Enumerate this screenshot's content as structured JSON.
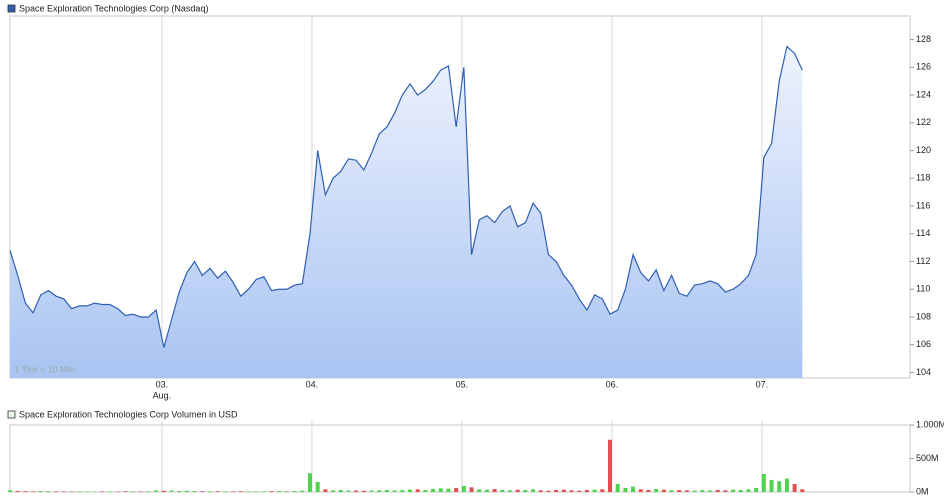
{
  "chart_data": [
    {
      "type": "line",
      "title": "Space Exploration Technologies Corp (Nasdaq)",
      "note": "1 Tick = 10 Min.",
      "x": [
        0,
        2,
        4,
        6,
        8,
        10,
        12,
        14,
        16,
        18,
        20,
        22,
        24,
        26,
        28,
        30,
        32,
        34,
        36,
        38,
        40,
        42,
        44,
        46,
        48,
        50,
        52,
        54,
        56,
        58,
        60,
        62,
        64,
        66,
        68,
        70,
        72,
        74,
        76,
        78,
        80,
        82,
        84,
        86,
        88,
        90,
        92,
        94,
        96,
        98,
        100,
        102,
        104,
        106,
        108,
        110,
        112,
        114,
        116,
        118,
        120,
        122,
        124,
        126,
        128,
        130,
        132,
        134,
        136,
        138,
        140,
        142,
        144,
        146,
        148,
        150,
        152,
        154,
        156,
        158,
        160,
        162,
        164,
        166,
        168,
        170,
        172,
        174,
        176,
        178,
        180,
        182,
        184,
        186,
        188,
        190,
        192,
        194,
        196,
        198,
        200,
        202,
        204,
        206
      ],
      "series": [
        {
          "name": "Space Exploration Technologies Corp (Nasdaq)",
          "color": "#2f5fb3",
          "values": [
            112.8,
            111.0,
            109.0,
            108.3,
            109.6,
            109.9,
            109.5,
            109.3,
            108.6,
            108.8,
            108.8,
            109.0,
            108.9,
            108.9,
            108.6,
            108.1,
            108.2,
            108.0,
            108.0,
            108.5,
            105.8,
            107.8,
            109.8,
            111.2,
            112.0,
            111.0,
            111.5,
            110.8,
            111.3,
            110.5,
            109.5,
            110.0,
            110.7,
            110.9,
            109.9,
            110.0,
            110.0,
            110.3,
            110.4,
            114.0,
            120.0,
            116.8,
            118.0,
            118.5,
            119.4,
            119.3,
            118.6,
            119.8,
            121.2,
            121.7,
            122.7,
            124.0,
            124.8,
            124.0,
            124.4,
            125.0,
            125.8,
            126.1,
            121.7,
            126.0,
            112.5,
            115.0,
            115.3,
            114.8,
            115.6,
            116.0,
            114.5,
            114.8,
            116.2,
            115.5,
            112.5,
            112.0,
            111.0,
            110.3,
            109.3,
            108.5,
            109.6,
            109.3,
            108.2,
            108.5,
            110.0,
            112.5,
            111.2,
            110.6,
            111.4,
            109.9,
            111.0,
            109.7,
            109.5,
            110.3,
            110.4,
            110.6,
            110.4,
            109.8,
            110.0,
            110.4,
            111.0,
            112.5,
            119.5,
            120.5,
            125.0,
            127.5,
            127.0,
            125.8
          ]
        }
      ],
      "xlim": [
        0,
        234
      ],
      "xticks": [
        {
          "value": 39.5,
          "label": "03."
        },
        {
          "value": 78.5,
          "label": "04."
        },
        {
          "value": 117.5,
          "label": "05."
        },
        {
          "value": 156.5,
          "label": "06."
        },
        {
          "value": 195.5,
          "label": "07."
        }
      ],
      "x_month_label": "Aug.",
      "ylim": [
        103.6,
        129.7
      ],
      "yticks": [
        104,
        106,
        108,
        110,
        112,
        114,
        116,
        118,
        120,
        122,
        124,
        126,
        128
      ],
      "grid": true
    },
    {
      "type": "bar",
      "title": "Space Exploration Technologies Corp Volumen in USD",
      "x": [
        0,
        2,
        4,
        6,
        8,
        10,
        12,
        14,
        16,
        18,
        20,
        22,
        24,
        26,
        28,
        30,
        32,
        34,
        36,
        38,
        40,
        42,
        44,
        46,
        48,
        50,
        52,
        54,
        56,
        58,
        60,
        62,
        64,
        66,
        68,
        70,
        72,
        74,
        76,
        78,
        80,
        82,
        84,
        86,
        88,
        90,
        92,
        94,
        96,
        98,
        100,
        102,
        104,
        106,
        108,
        110,
        112,
        114,
        116,
        118,
        120,
        122,
        124,
        126,
        128,
        130,
        132,
        134,
        136,
        138,
        140,
        142,
        144,
        146,
        148,
        150,
        152,
        154,
        156,
        158,
        160,
        162,
        164,
        166,
        168,
        170,
        172,
        174,
        176,
        178,
        180,
        182,
        184,
        186,
        188,
        190,
        192,
        194,
        196,
        198,
        200,
        202,
        204,
        206
      ],
      "values": [
        25,
        15,
        12,
        10,
        14,
        12,
        10,
        9,
        8,
        10,
        9,
        8,
        10,
        9,
        8,
        12,
        10,
        9,
        11,
        22,
        18,
        20,
        15,
        18,
        14,
        12,
        10,
        12,
        10,
        9,
        11,
        10,
        9,
        10,
        12,
        14,
        12,
        15,
        20,
        280,
        150,
        40,
        25,
        30,
        20,
        22,
        18,
        20,
        25,
        30,
        22,
        28,
        35,
        40,
        30,
        45,
        55,
        50,
        60,
        90,
        70,
        40,
        35,
        45,
        30,
        25,
        35,
        30,
        40,
        25,
        20,
        30,
        35,
        25,
        20,
        30,
        35,
        40,
        780,
        120,
        60,
        80,
        40,
        30,
        45,
        35,
        25,
        30,
        25,
        20,
        28,
        22,
        30,
        25,
        35,
        30,
        40,
        60,
        270,
        180,
        160,
        200,
        120,
        40
      ],
      "up_color": "#4fd24f",
      "down_color": "#e05050",
      "xlim": [
        0,
        234
      ],
      "xticks": [
        39.5,
        78.5,
        117.5,
        156.5,
        195.5
      ],
      "ylim": [
        0,
        1060
      ],
      "yticks": [
        {
          "value": 1000,
          "label": "1.000M"
        },
        {
          "value": 500,
          "label": "500M"
        },
        {
          "value": 0,
          "label": "0M"
        }
      ],
      "grid": true
    }
  ]
}
